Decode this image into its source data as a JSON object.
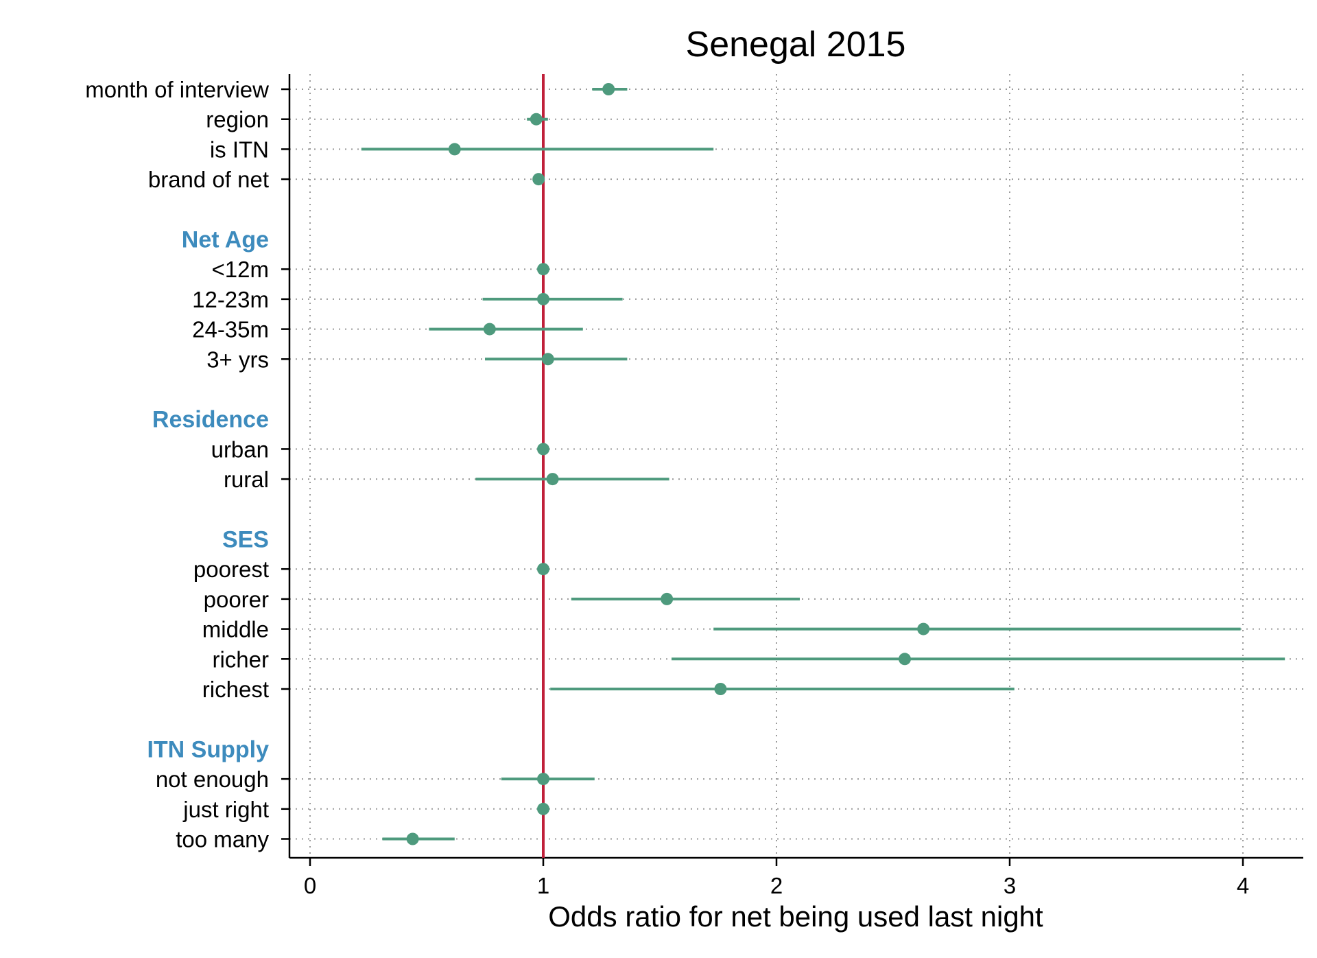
{
  "chart_data": {
    "type": "scatter",
    "subtype": "forest-plot",
    "title": "Senegal 2015",
    "xlabel": "Odds ratio for net being used last night",
    "ylabel": "",
    "xlim": [
      -0.1,
      4.25
    ],
    "xticks": [
      0,
      1,
      2,
      3,
      4
    ],
    "reference_line": 1,
    "grid": true,
    "colors": {
      "point": "#4e9a7d",
      "reference": "#c0203a",
      "group_label": "#3d8bbd"
    },
    "groups": [
      {
        "name": "",
        "rows": [
          {
            "label": "month of interview",
            "est": 1.28,
            "low": 1.21,
            "high": 1.36
          },
          {
            "label": "region",
            "est": 0.97,
            "low": 0.93,
            "high": 1.02
          },
          {
            "label": "is ITN",
            "est": 0.62,
            "low": 0.22,
            "high": 1.73
          },
          {
            "label": "brand of net",
            "est": 0.98,
            "low": 0.97,
            "high": 0.99
          }
        ]
      },
      {
        "name": "Net Age",
        "rows": [
          {
            "label": "<12m",
            "est": 1.0,
            "low": 1.0,
            "high": 1.0
          },
          {
            "label": "12-23m",
            "est": 1.0,
            "low": 0.74,
            "high": 1.34
          },
          {
            "label": "24-35m",
            "est": 0.77,
            "low": 0.51,
            "high": 1.17
          },
          {
            "label": "3+ yrs",
            "est": 1.02,
            "low": 0.75,
            "high": 1.36
          }
        ]
      },
      {
        "name": "Residence",
        "rows": [
          {
            "label": "urban",
            "est": 1.0,
            "low": 1.0,
            "high": 1.0
          },
          {
            "label": "rural",
            "est": 1.04,
            "low": 0.71,
            "high": 1.54
          }
        ]
      },
      {
        "name": "SES",
        "rows": [
          {
            "label": "poorest",
            "est": 1.0,
            "low": 1.0,
            "high": 1.0
          },
          {
            "label": "poorer",
            "est": 1.53,
            "low": 1.12,
            "high": 2.1
          },
          {
            "label": "middle",
            "est": 2.63,
            "low": 1.73,
            "high": 3.99
          },
          {
            "label": "richer",
            "est": 2.55,
            "low": 1.55,
            "high": 4.18
          },
          {
            "label": "richest",
            "est": 1.76,
            "low": 1.03,
            "high": 3.02
          }
        ]
      },
      {
        "name": "ITN Supply",
        "rows": [
          {
            "label": "not enough",
            "est": 1.0,
            "low": 0.82,
            "high": 1.22
          },
          {
            "label": "just right",
            "est": 1.0,
            "low": 1.0,
            "high": 1.0
          },
          {
            "label": "too many",
            "est": 0.44,
            "low": 0.31,
            "high": 0.62
          }
        ]
      }
    ]
  }
}
